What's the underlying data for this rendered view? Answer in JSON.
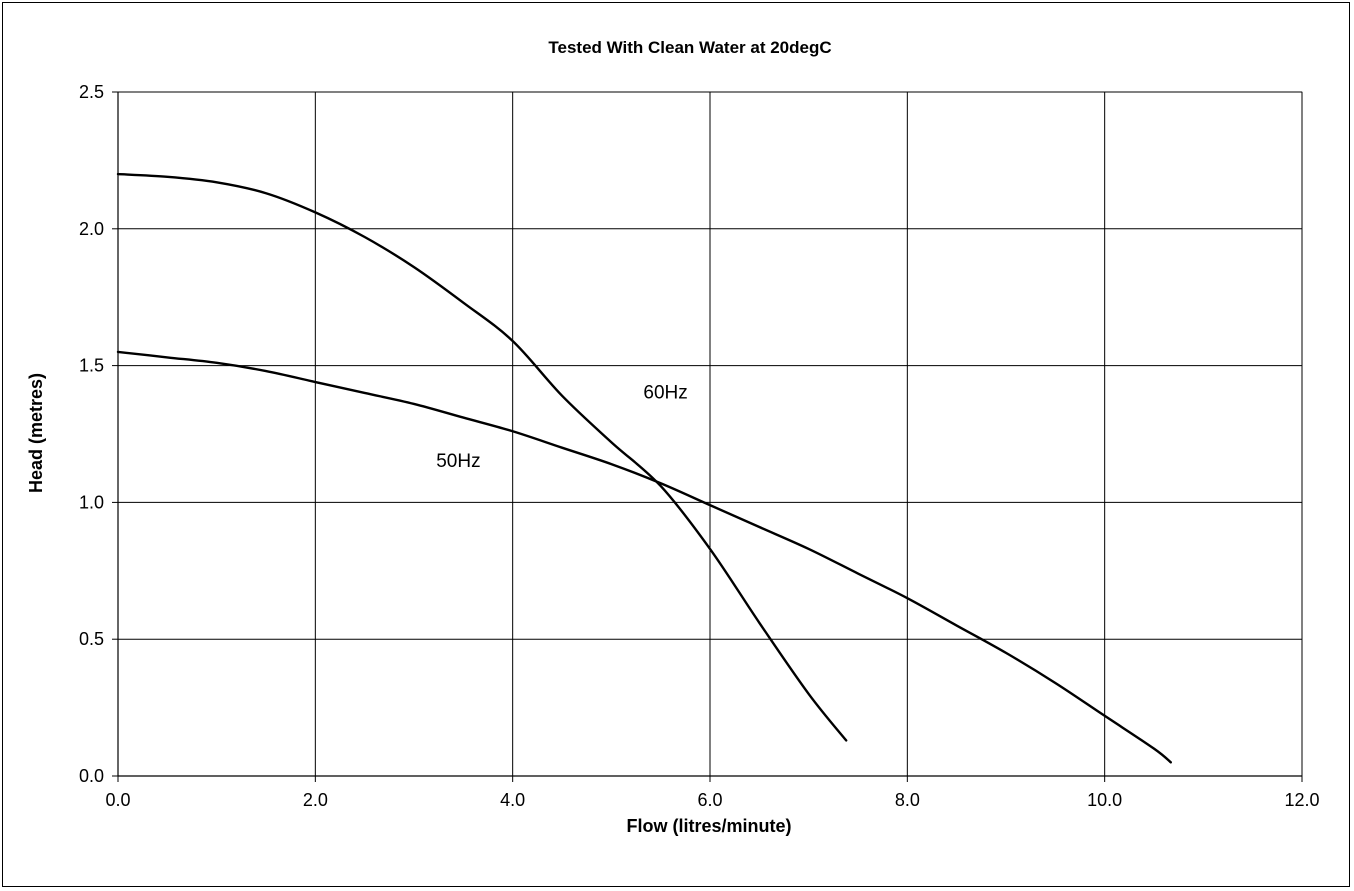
{
  "chart_data": {
    "type": "line",
    "title": "Tested With Clean Water at 20degC",
    "xlabel": "Flow (litres/minute)",
    "ylabel": "Head (metres)",
    "xlim": [
      0,
      12
    ],
    "ylim": [
      0,
      2.5
    ],
    "x_ticks": [
      "0.0",
      "2.0",
      "4.0",
      "6.0",
      "8.0",
      "10.0",
      "12.0"
    ],
    "y_ticks": [
      "0.0",
      "0.5",
      "1.0",
      "1.5",
      "2.0",
      "2.5"
    ],
    "grid": true,
    "legend": "none",
    "line_color": "#000000",
    "series": [
      {
        "name": "60Hz",
        "points": [
          [
            0.0,
            2.2
          ],
          [
            0.5,
            2.19
          ],
          [
            1.0,
            2.17
          ],
          [
            1.5,
            2.13
          ],
          [
            2.0,
            2.06
          ],
          [
            2.5,
            1.97
          ],
          [
            3.0,
            1.86
          ],
          [
            3.5,
            1.73
          ],
          [
            4.0,
            1.59
          ],
          [
            4.5,
            1.39
          ],
          [
            5.0,
            1.22
          ],
          [
            5.5,
            1.06
          ],
          [
            6.0,
            0.83
          ],
          [
            6.5,
            0.56
          ],
          [
            7.0,
            0.3
          ],
          [
            7.38,
            0.13
          ]
        ]
      },
      {
        "name": "50Hz",
        "points": [
          [
            0.0,
            1.55
          ],
          [
            0.5,
            1.53
          ],
          [
            1.0,
            1.51
          ],
          [
            1.5,
            1.48
          ],
          [
            2.0,
            1.44
          ],
          [
            2.5,
            1.4
          ],
          [
            3.0,
            1.36
          ],
          [
            3.5,
            1.31
          ],
          [
            4.0,
            1.26
          ],
          [
            4.5,
            1.2
          ],
          [
            5.0,
            1.14
          ],
          [
            5.5,
            1.07
          ],
          [
            6.0,
            0.99
          ],
          [
            6.5,
            0.91
          ],
          [
            7.0,
            0.83
          ],
          [
            7.5,
            0.74
          ],
          [
            8.0,
            0.65
          ],
          [
            8.5,
            0.55
          ],
          [
            9.0,
            0.45
          ],
          [
            9.5,
            0.34
          ],
          [
            10.0,
            0.22
          ],
          [
            10.5,
            0.1
          ],
          [
            10.67,
            0.05
          ]
        ]
      }
    ],
    "annotations": [
      {
        "text": "60Hz",
        "x": 5.55,
        "y": 1.38
      },
      {
        "text": "50Hz",
        "x": 3.45,
        "y": 1.13
      }
    ]
  }
}
